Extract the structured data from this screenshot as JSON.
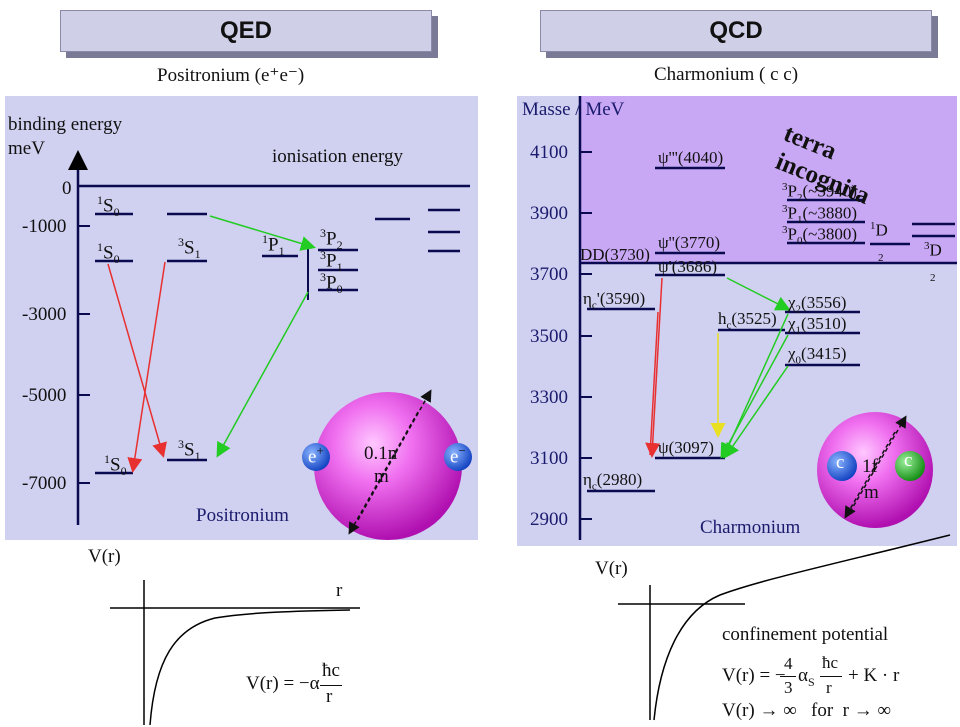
{
  "headers": {
    "qed": "QED",
    "qcd": "QCD"
  },
  "qed": {
    "title": "Positronium (e⁺e⁻)",
    "yaxis_label_1": "binding energy",
    "yaxis_label_2": "meV",
    "ionisation_label": "ionisation energy",
    "ticks": [
      "0",
      "-1000",
      "-3000",
      "-5000",
      "-7000"
    ],
    "states": {
      "s1_0_upper": "S",
      "s1_0_lower": "S",
      "s3_1_upper": "S",
      "p1_1": "P",
      "p3_2": "P",
      "p3_1": "P",
      "p3_0": "P",
      "s1_0_ground": "S",
      "s3_1_ground": "S"
    },
    "atom": {
      "e_plus": "e",
      "e_plus_sup": "+",
      "e_minus": "e",
      "e_minus_sup": "−",
      "size": "0.1n",
      "size_unit": "m"
    },
    "caption": "Positronium",
    "potential": {
      "vr": "V(r)",
      "r_axis": "r",
      "formula_lhs": "V(r) = −α",
      "formula_num": "ħc",
      "formula_den": "r"
    }
  },
  "qcd": {
    "title": "Charmonium ( c c)",
    "yaxis_label": "Masse / MeV",
    "ticks": [
      "4100",
      "3900",
      "3700",
      "3500",
      "3300",
      "3100",
      "2900"
    ],
    "terra_incognita_1": "terra",
    "terra_incognita_2": "incognita",
    "states": {
      "psi4040": "ψ'''(4040)",
      "psi3770": "ψ''(3770)",
      "psi3686": "ψ'(3686)",
      "dd3730": "DD(3730)",
      "etac3590": "η",
      "etac3590_val": "'(3590)",
      "chi2_3556": "(3556)",
      "chi1_3510": "(3510)",
      "chi0_3415": "(3415)",
      "hc3525": "(3525)",
      "psi3097": "ψ(3097)",
      "etac2980": "(2980)",
      "p2_3940": "P",
      "p2_val": "(~3940)",
      "p1_val": "(~3880)",
      "p0_val": "(~3800)",
      "d1": "D",
      "d3": "D",
      "d_sub": "2"
    },
    "atom": {
      "c1": "c",
      "c2": "c",
      "size": "1f",
      "size_unit": "m"
    },
    "caption": "Charmonium",
    "potential": {
      "vr": "V(r)",
      "label": "confinement potential",
      "formula_lhs": "V(r) = −",
      "frac_num": "4",
      "frac_den": "3",
      "alpha": "α",
      "alpha_sub": "S",
      "hbar_num": "ħc",
      "hbar_den": "r",
      "formula_tail": "+ K · r",
      "limit": "V(r) → ∞   for  r → ∞"
    }
  },
  "colors": {
    "panel": "#d0d0f0",
    "terra": "#c8a8f4",
    "level": "#0a0a50",
    "red_arrow": "#e83030",
    "green_arrow": "#22cc22",
    "yellow_arrow": "#e8e020"
  }
}
